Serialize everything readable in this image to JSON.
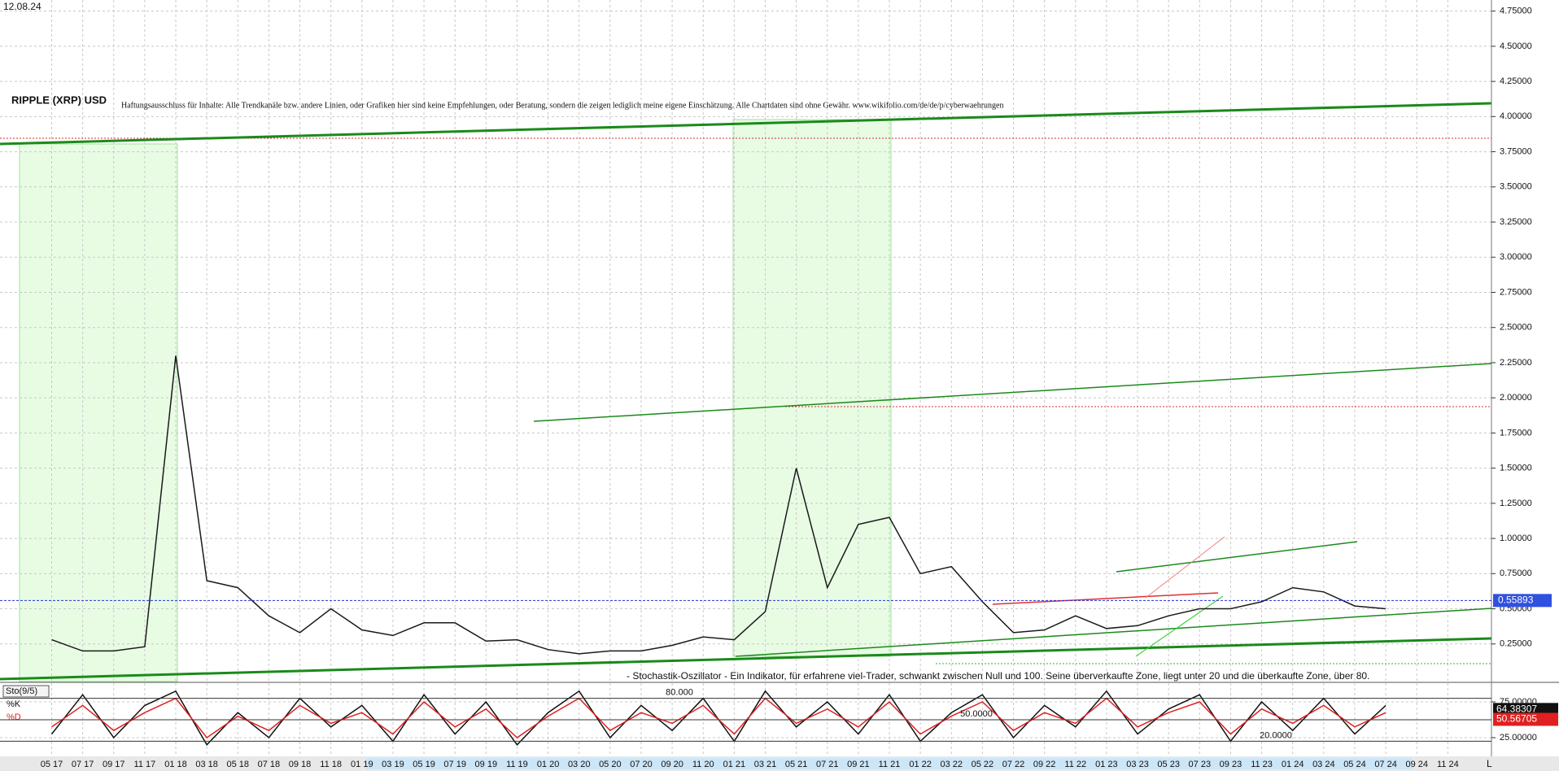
{
  "chart_data": [
    {
      "type": "line",
      "title": "RIPPLE (XRP) USD",
      "date": "12.08.24",
      "subtitle": "Haftungsausschluss für Inhalte: Alle Trendkanäle bzw. andere Linien, oder Grafiken hier sind keine Empfehlungen, oder Beratung, sondern die zeigen lediglich meine eigene Einschätzung. Alle Chartdaten sind ohne Gewähr.  www.wikifolio.com/de/de/p/cyberwaehrungen",
      "categories": [
        "05 17",
        "07 17",
        "09 17",
        "11 17",
        "01 18",
        "03 18",
        "05 18",
        "07 18",
        "09 18",
        "11 18",
        "01 19",
        "03 19",
        "05 19",
        "07 19",
        "09 19",
        "11 19",
        "01 20",
        "03 20",
        "05 20",
        "07 20",
        "09 20",
        "11 20",
        "01 21",
        "03 21",
        "05 21",
        "07 21",
        "09 21",
        "11 21",
        "01 22",
        "03 22",
        "05 22",
        "07 22",
        "09 22",
        "11 22",
        "01 23",
        "03 23",
        "05 23",
        "07 23",
        "09 23",
        "11 23",
        "01 24",
        "03 24",
        "05 24",
        "07 24",
        "09 24",
        "11 24"
      ],
      "series": [
        {
          "name": "RIPPLE (XRP) USD",
          "color": "#1a1a1a",
          "values": [
            0.28,
            0.2,
            0.2,
            0.23,
            2.3,
            0.7,
            0.65,
            0.45,
            0.33,
            0.5,
            0.35,
            0.31,
            0.4,
            0.4,
            0.27,
            0.28,
            0.21,
            0.18,
            0.2,
            0.2,
            0.24,
            0.3,
            0.28,
            0.48,
            1.5,
            0.65,
            1.1,
            1.15,
            0.75,
            0.8,
            0.55,
            0.33,
            0.35,
            0.45,
            0.36,
            0.38,
            0.45,
            0.5,
            0.5,
            0.55,
            0.65,
            0.62,
            0.52,
            0.5,
            null,
            null
          ]
        }
      ],
      "last_price": 0.55893,
      "ylim": [
        0,
        4.8
      ],
      "yticks": [
        {
          "value": 0.25,
          "label": "0.25000"
        },
        {
          "value": 0.5,
          "label": "0.50000"
        },
        {
          "value": 0.75,
          "label": "0.75000"
        },
        {
          "value": 1,
          "label": "1.00000"
        },
        {
          "value": 1.25,
          "label": "1.25000"
        },
        {
          "value": 1.5,
          "label": "1.50000"
        },
        {
          "value": 1.75,
          "label": "1.75000"
        },
        {
          "value": 2,
          "label": "2.00000"
        },
        {
          "value": 2.25,
          "label": "2.25000"
        },
        {
          "value": 2.5,
          "label": "2.50000"
        },
        {
          "value": 2.75,
          "label": "2.75000"
        },
        {
          "value": 3,
          "label": "3.00000"
        },
        {
          "value": 3.25,
          "label": "3.25000"
        },
        {
          "value": 3.5,
          "label": "3.50000"
        },
        {
          "value": 3.75,
          "label": "3.75000"
        },
        {
          "value": 4,
          "label": "4.00000"
        },
        {
          "value": 4.25,
          "label": "4.25000"
        },
        {
          "value": 4.5,
          "label": "4.50000"
        },
        {
          "value": 4.75,
          "label": "4.75000"
        }
      ],
      "grid": true,
      "corner_label": "L"
    },
    {
      "type": "line",
      "title": "Sto(9/5)",
      "annotation": "- Stochastik-Oszillator - Ein Indikator, für erfahrene viel-Trader, schwankt zwischen Null und 100. Seine überverkaufte Zone, liegt unter 20 und die überkaufte Zone, über 80.",
      "series": [
        {
          "name": "%K",
          "color": "#111111",
          "last": 64.38307,
          "values": [
            30,
            85,
            25,
            70,
            90,
            15,
            60,
            25,
            80,
            40,
            70,
            20,
            85,
            30,
            75,
            15,
            60,
            90,
            25,
            70,
            35,
            80,
            20,
            90,
            40,
            75,
            30,
            85,
            20,
            60,
            85,
            25,
            70,
            40,
            90,
            30,
            65,
            85,
            20,
            75,
            35,
            80,
            30,
            70,
            null,
            null
          ]
        },
        {
          "name": "%D",
          "color": "#e02020",
          "last": 50.56705,
          "values": [
            40,
            70,
            35,
            60,
            80,
            25,
            55,
            35,
            70,
            45,
            60,
            30,
            75,
            40,
            65,
            25,
            55,
            80,
            35,
            60,
            45,
            70,
            30,
            80,
            45,
            65,
            40,
            75,
            30,
            55,
            75,
            35,
            60,
            45,
            80,
            40,
            60,
            75,
            30,
            65,
            45,
            70,
            40,
            60,
            null,
            null
          ]
        }
      ],
      "levels": [
        {
          "value": 80,
          "label": "80.000"
        },
        {
          "value": 50,
          "label": "50.0000"
        },
        {
          "value": 20,
          "label": "20.0000"
        }
      ],
      "ylim": [
        0,
        100
      ],
      "yticks": [
        {
          "value": 25,
          "label": "25.00000"
        },
        {
          "value": 75,
          "label": "75.00000"
        }
      ]
    }
  ]
}
